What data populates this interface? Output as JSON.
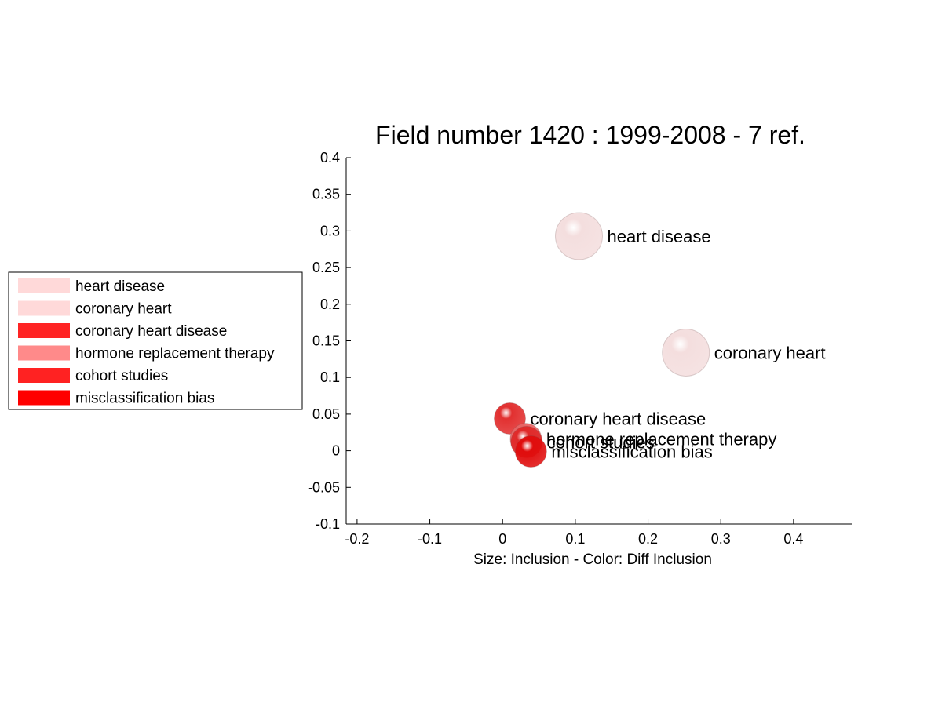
{
  "chart_data": {
    "type": "scatter",
    "title": "Field number 1420 : 1999-2008  - 7 ref.",
    "xlabel": "Size: Inclusion - Color: Diff Inclusion",
    "ylabel": "",
    "xlim": [
      -0.215,
      0.48
    ],
    "ylim": [
      -0.1,
      0.4
    ],
    "xticks": [
      -0.2,
      -0.1,
      0,
      0.1,
      0.2,
      0.3,
      0.4
    ],
    "xtick_labels": [
      "-0.2",
      "-0.1",
      "0",
      "0.1",
      "0.2",
      "0.3",
      "0.4"
    ],
    "yticks": [
      -0.1,
      -0.05,
      0,
      0.05,
      0.1,
      0.15,
      0.2,
      0.25,
      0.3,
      0.35,
      0.4
    ],
    "ytick_labels": [
      "-0.1",
      "-0.05",
      "0",
      "0.05",
      "0.1",
      "0.15",
      "0.2",
      "0.25",
      "0.3",
      "0.35",
      "0.4"
    ],
    "grid": false,
    "legend_position": "left",
    "points": [
      {
        "label": "heart disease",
        "x": 0.105,
        "y": 0.293,
        "color": "#f4dede"
      },
      {
        "label": "coronary heart",
        "x": 0.252,
        "y": 0.134,
        "color": "#f4dede"
      },
      {
        "label": "coronary heart disease",
        "x": 0.01,
        "y": 0.044,
        "color": "#e23030"
      },
      {
        "label": "hormone replacement therapy",
        "x": 0.032,
        "y": 0.016,
        "color": "#e86565"
      },
      {
        "label": "cohort studies",
        "x": 0.033,
        "y": 0.012,
        "color": "#e02a2a"
      },
      {
        "label": "misclassification bias",
        "x": 0.039,
        "y": -0.001,
        "color": "#e00d0d"
      }
    ],
    "legend": [
      {
        "label": "heart disease",
        "color": "#ffd9d9"
      },
      {
        "label": "coronary heart",
        "color": "#ffd9d9"
      },
      {
        "label": "coronary heart disease",
        "color": "#ff2424"
      },
      {
        "label": "hormone replacement therapy",
        "color": "#ff8a8a"
      },
      {
        "label": "cohort studies",
        "color": "#ff2222"
      },
      {
        "label": "misclassification bias",
        "color": "#ff0000"
      }
    ]
  }
}
